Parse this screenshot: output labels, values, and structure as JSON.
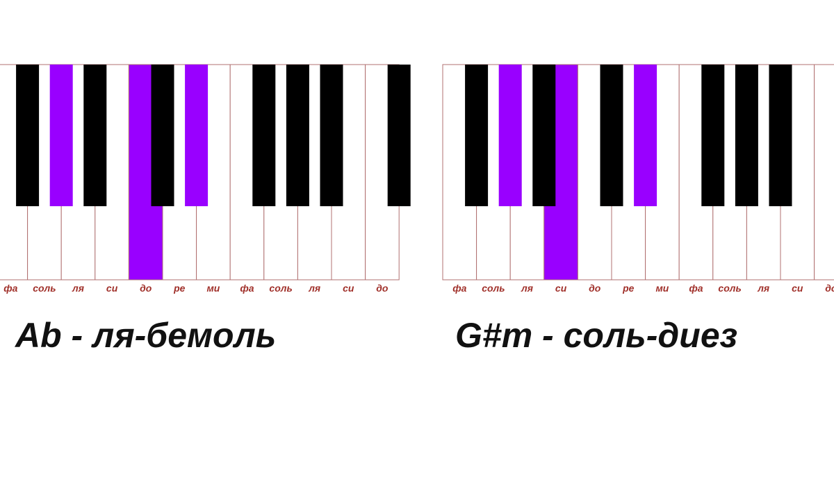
{
  "colors": {
    "white": "#ffffff",
    "black": "#000000",
    "highlighted": "#9900ff"
  },
  "keyboards": [
    {
      "caption": "Ab - ля-бемоль",
      "keys": [
        {
          "label": "фа",
          "color": "white",
          "sharp": "black"
        },
        {
          "label": "соль",
          "color": "white",
          "sharp": "highlighted"
        },
        {
          "label": "ля",
          "color": "white",
          "sharp": "black"
        },
        {
          "label": "си",
          "color": "white",
          "sharp": "none"
        },
        {
          "label": "до",
          "color": "highlighted",
          "sharp": "black"
        },
        {
          "label": "ре",
          "color": "white",
          "sharp": "highlighted"
        },
        {
          "label": "ми",
          "color": "white",
          "sharp": "none"
        },
        {
          "label": "фа",
          "color": "white",
          "sharp": "black"
        },
        {
          "label": "соль",
          "color": "white",
          "sharp": "black"
        },
        {
          "label": "ля",
          "color": "white",
          "sharp": "black"
        },
        {
          "label": "си",
          "color": "white",
          "sharp": "none"
        },
        {
          "label": "до",
          "color": "white",
          "sharp": "black"
        }
      ]
    },
    {
      "caption": "G#m - соль-диез",
      "keys": [
        {
          "label": "фа",
          "color": "white",
          "sharp": "black"
        },
        {
          "label": "соль",
          "color": "white",
          "sharp": "highlighted"
        },
        {
          "label": "ля",
          "color": "white",
          "sharp": "black"
        },
        {
          "label": "си",
          "color": "highlighted",
          "sharp": "none"
        },
        {
          "label": "до",
          "color": "white",
          "sharp": "black"
        },
        {
          "label": "ре",
          "color": "white",
          "sharp": "highlighted"
        },
        {
          "label": "ми",
          "color": "white",
          "sharp": "none"
        },
        {
          "label": "фа",
          "color": "white",
          "sharp": "black"
        },
        {
          "label": "соль",
          "color": "white",
          "sharp": "black"
        },
        {
          "label": "ля",
          "color": "white",
          "sharp": "black"
        },
        {
          "label": "си",
          "color": "white",
          "sharp": "none"
        },
        {
          "label": "до",
          "color": "white",
          "sharp": "none"
        }
      ]
    }
  ]
}
